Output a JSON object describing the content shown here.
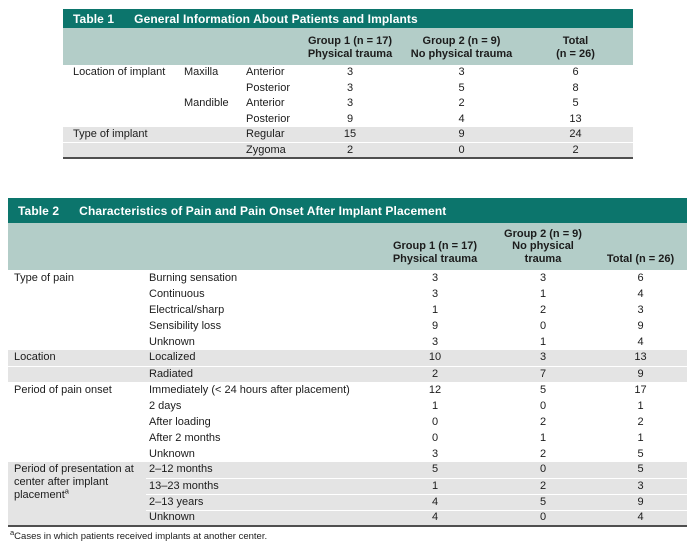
{
  "colors": {
    "header_bar": "#0c756c",
    "header_band": "#b3cdc8",
    "row_shade": "#e4e4e4",
    "bottom_rule": "#4f4f4f"
  },
  "tables": [
    {
      "tag": "Table 1",
      "title": "General Information About Patients and Implants",
      "headers": [
        {
          "lines": []
        },
        {
          "lines": []
        },
        {
          "lines": []
        },
        {
          "lines": [
            "Group 1 (n = 17)",
            "Physical trauma"
          ]
        },
        {
          "lines": [
            "Group 2 (n = 9)",
            "No physical trauma"
          ]
        },
        {
          "lines": [
            "Total",
            "(n = 26)"
          ]
        }
      ],
      "rows": [
        {
          "cells": [
            "Location of implant",
            "Maxilla",
            "Anterior",
            "3",
            "3",
            "6"
          ]
        },
        {
          "cells": [
            "",
            "",
            "Posterior",
            "3",
            "5",
            "8"
          ]
        },
        {
          "cells": [
            "",
            "Mandible",
            "Anterior",
            "3",
            "2",
            "5"
          ]
        },
        {
          "cells": [
            "",
            "",
            "Posterior",
            "9",
            "4",
            "13"
          ]
        },
        {
          "shade": true,
          "cells": [
            "Type of implant",
            "",
            "Regular",
            "15",
            "9",
            "24"
          ]
        },
        {
          "shade": true,
          "sep": true,
          "cells": [
            "",
            "",
            "Zygoma",
            "2",
            "0",
            "2"
          ]
        }
      ]
    },
    {
      "tag": "Table 2",
      "title": "Characteristics of Pain and Pain Onset After Implant Placement",
      "headers": [
        {
          "lines": []
        },
        {
          "lines": []
        },
        {
          "lines": [
            "Group 1 (n = 17)",
            "Physical trauma"
          ]
        },
        {
          "lines": [
            "Group 2 (n = 9)",
            "No physical",
            "trauma"
          ]
        },
        {
          "lines": [
            "Total (n = 26)"
          ]
        }
      ],
      "rows": [
        {
          "cells": [
            "Type of pain",
            "Burning sensation",
            "3",
            "3",
            "6"
          ]
        },
        {
          "cells": [
            "",
            "Continuous",
            "3",
            "1",
            "4"
          ]
        },
        {
          "cells": [
            "",
            "Electrical/sharp",
            "1",
            "2",
            "3"
          ]
        },
        {
          "cells": [
            "",
            "Sensibility loss",
            "9",
            "0",
            "9"
          ]
        },
        {
          "cells": [
            "",
            "Unknown",
            "3",
            "1",
            "4"
          ]
        },
        {
          "shade": true,
          "cells": [
            "Location",
            "Localized",
            "10",
            "3",
            "13"
          ]
        },
        {
          "shade": true,
          "sep": true,
          "cells": [
            "",
            "Radiated",
            "2",
            "7",
            "9"
          ]
        },
        {
          "cells": [
            "Period of pain onset",
            "Immediately (< 24 hours after placement)",
            "12",
            "5",
            "17"
          ]
        },
        {
          "cells": [
            "",
            "2 days",
            "1",
            "0",
            "1"
          ]
        },
        {
          "cells": [
            "",
            "After loading",
            "0",
            "2",
            "2"
          ]
        },
        {
          "cells": [
            "",
            "After 2 months",
            "0",
            "1",
            "1"
          ]
        },
        {
          "cells": [
            "",
            "Unknown",
            "3",
            "2",
            "5"
          ]
        },
        {
          "shade": true,
          "rowspan": 4,
          "label_sup": "a",
          "cells": [
            "Period of presentation at center after implant placement",
            "2–12 months",
            "5",
            "0",
            "5"
          ]
        },
        {
          "shade": true,
          "sep": true,
          "cells": [
            "13–23 months",
            "1",
            "2",
            "3"
          ]
        },
        {
          "shade": true,
          "sep": true,
          "cells": [
            "2–13 years",
            "4",
            "5",
            "9"
          ]
        },
        {
          "shade": true,
          "sep": true,
          "cells": [
            "Unknown",
            "4",
            "0",
            "4"
          ]
        }
      ],
      "footnote": {
        "sup": "a",
        "text": "Cases in which patients received implants at another center."
      }
    }
  ]
}
